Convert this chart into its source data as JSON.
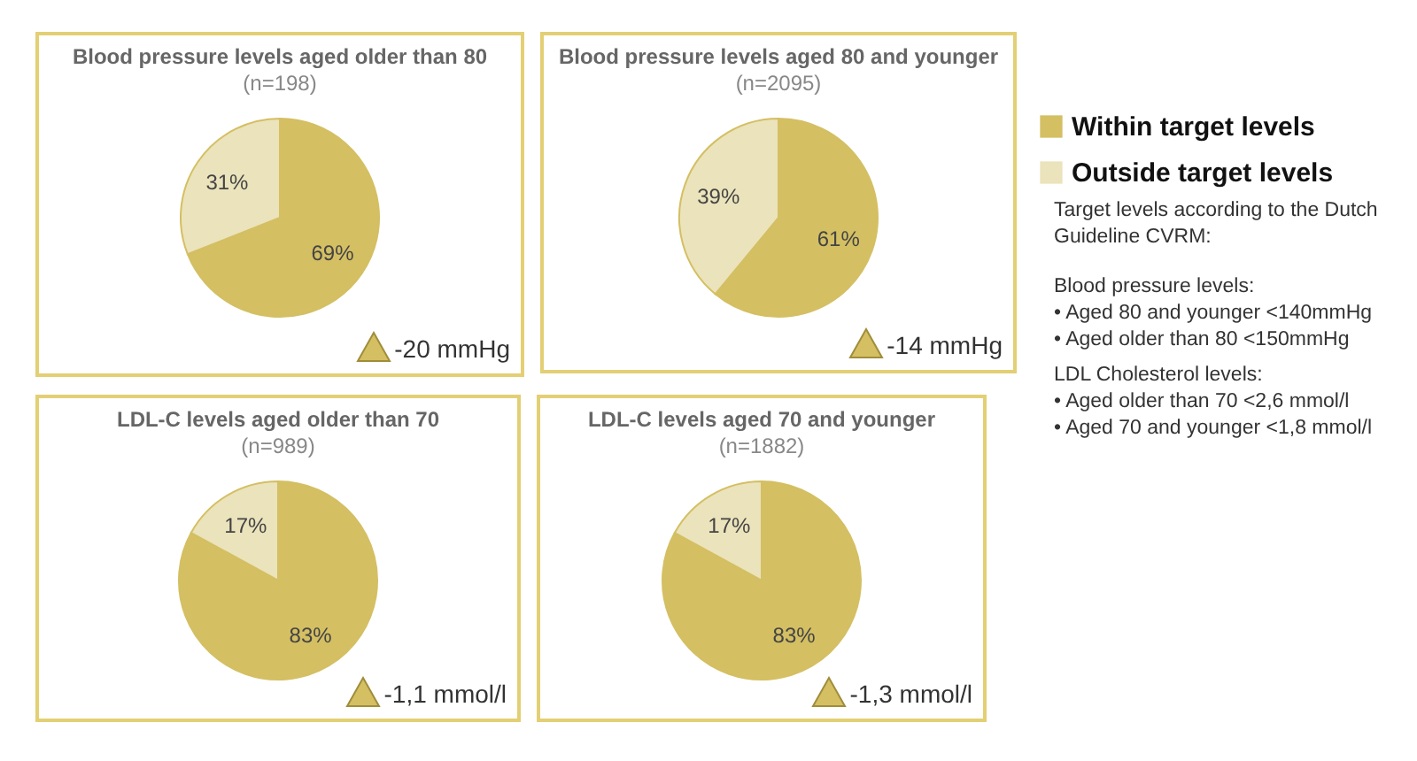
{
  "chart_data": [
    {
      "type": "pie",
      "title": "Blood pressure levels aged older than 80",
      "subtitle": "(n=198)",
      "categories": [
        null,
        null
      ],
      "values": [
        69,
        31
      ],
      "value_labels": [
        "69%",
        "31%"
      ],
      "colors": [
        "#d4bf63",
        "#ebe3bb"
      ],
      "annotations": [
        "-20 mmHg"
      ]
    },
    {
      "type": "pie",
      "title": "Blood pressure levels aged 80 and younger",
      "subtitle": "(n=2095)",
      "categories": [
        "Within target levels",
        "Outside target levels"
      ],
      "values": [
        61,
        39
      ],
      "value_labels": [
        "61%",
        "39%"
      ],
      "colors": [
        "#d4bf63",
        "#ebe3bb"
      ],
      "annotations": [
        "-14 mmHg"
      ],
      "legend": "right"
    },
    {
      "type": "pie",
      "title": "LDL-C levels aged older than 70",
      "subtitle": "(n=989)",
      "categories": [
        null,
        null
      ],
      "values": [
        83,
        17
      ],
      "value_labels": [
        "83%",
        "17%"
      ],
      "colors": [
        "#d4bf63",
        "#ebe3bb"
      ],
      "annotations": [
        "-1,1 mmol/l"
      ]
    },
    {
      "type": "pie",
      "title": "LDL-C levels aged 70 and younger",
      "subtitle": "(n=1882)",
      "categories": [
        null,
        null
      ],
      "values": [
        83,
        17
      ],
      "value_labels": [
        "83%",
        "17%"
      ],
      "colors": [
        "#d4bf63",
        "#ebe3bb"
      ],
      "annotations": [
        "-1,3 mmol/l"
      ]
    },
    {
      "type": "other",
      "title": "Target levels according to the Dutch Guideline CVRM:"
    },
    {
      "type": "other",
      "title": "Blood pressure levels:",
      "annotations": [
        "• Aged 80 and younger <140mmHg",
        "• Aged older than 80 <150mmHg"
      ]
    },
    {
      "type": "other",
      "title": "LDL Cholesterol levels:",
      "annotations": [
        "• Aged older than 70 <2,6 mmol/l",
        "• Aged 70 and younger <1,8 mmol/l"
      ]
    }
  ]
}
